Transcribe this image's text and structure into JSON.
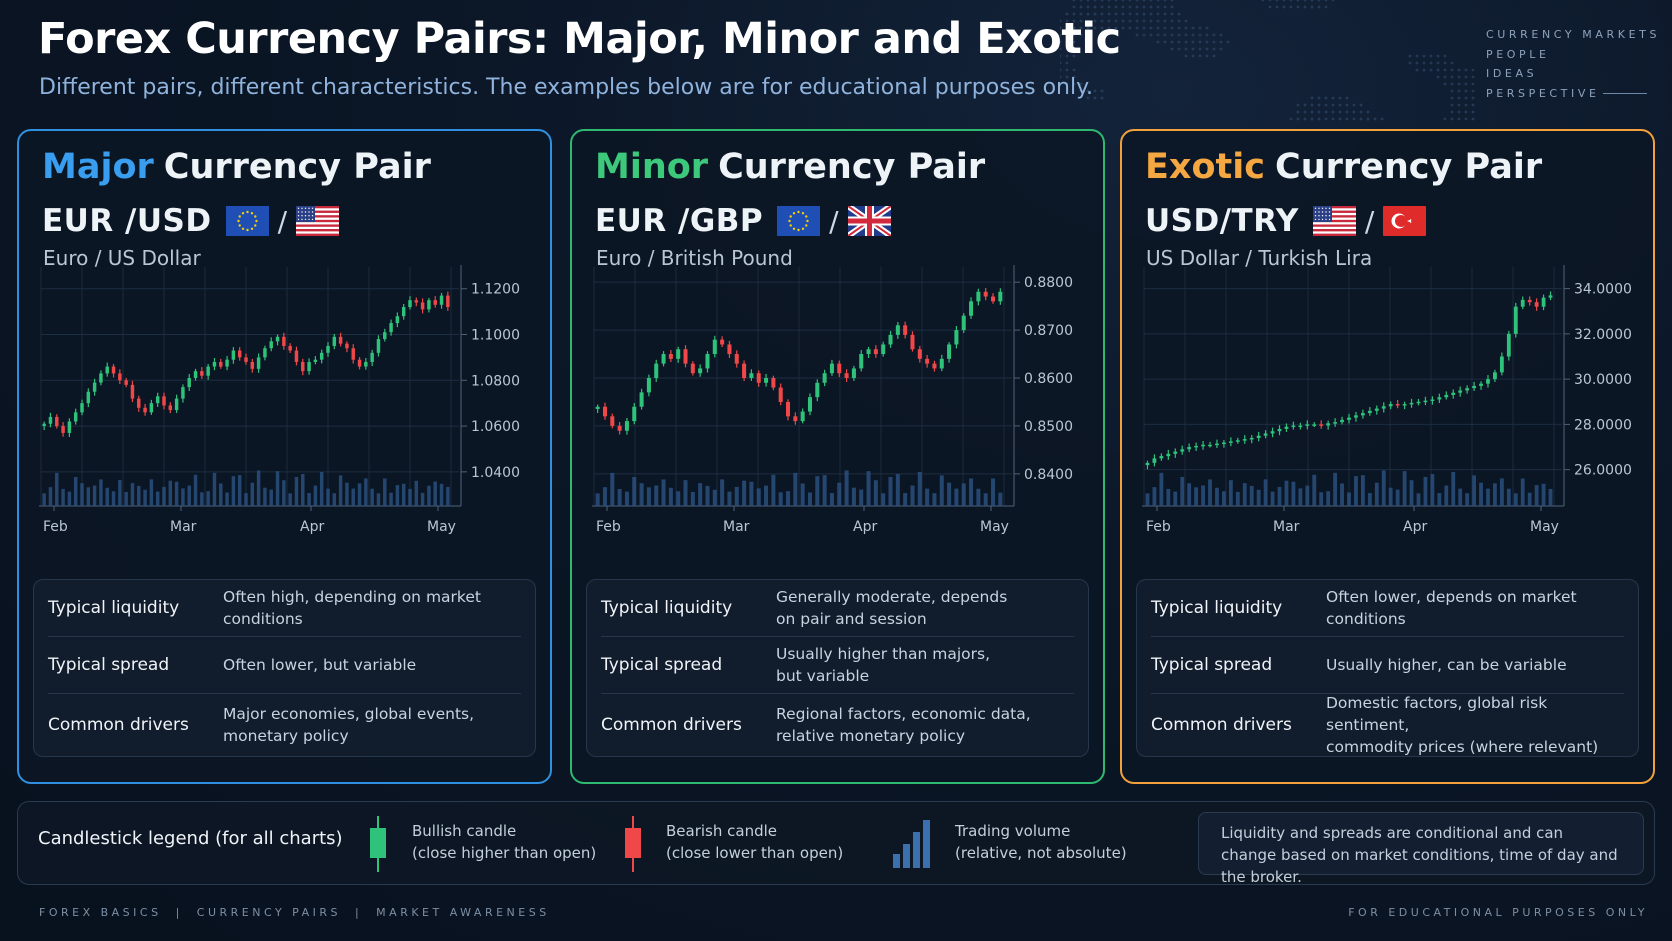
{
  "header": {
    "title": "Forex Currency Pairs: Major, Minor and Exotic",
    "subtitle": "Different pairs, different characteristics. The examples below are for educational purposes only.",
    "brand": [
      "CURRENCY MARKETS",
      "PEOPLE",
      "IDEAS",
      "PERSPECTIVE"
    ]
  },
  "colors": {
    "major": "#2f8fe0",
    "minor": "#2fb870",
    "exotic": "#f2a13c",
    "bullish": "#2fc27a",
    "bearish": "#f04848",
    "volume": "#2a4f7c"
  },
  "panels": [
    {
      "id": "major",
      "keyword": "Major",
      "title_rest": "Currency Pair",
      "pair": "EUR /USD",
      "pair_name": "Euro / US Dollar",
      "flags": [
        "eu-flag",
        "us-flag"
      ],
      "rows": [
        {
          "label": "Typical liquidity",
          "value": "Often high, depending on market conditions"
        },
        {
          "label": "Typical spread",
          "value": "Often lower, but variable"
        },
        {
          "label": "Common drivers",
          "value": "Major economies, global events,\nmonetary policy"
        }
      ]
    },
    {
      "id": "minor",
      "keyword": "Minor",
      "title_rest": "Currency Pair",
      "pair": "EUR /GBP",
      "pair_name": "Euro / British Pound",
      "flags": [
        "eu-flag",
        "uk-flag"
      ],
      "rows": [
        {
          "label": "Typical liquidity",
          "value": "Generally moderate, depends\non pair and session"
        },
        {
          "label": "Typical spread",
          "value": "Usually higher than majors,\nbut variable"
        },
        {
          "label": "Common drivers",
          "value": "Regional factors, economic data,\nrelative monetary policy"
        }
      ]
    },
    {
      "id": "exotic",
      "keyword": "Exotic",
      "title_rest": "Currency Pair",
      "pair": "USD/TRY",
      "pair_name": "US Dollar / Turkish Lira",
      "flags": [
        "us-flag",
        "tr-flag"
      ],
      "rows": [
        {
          "label": "Typical liquidity",
          "value": "Often lower, depends on market\nconditions"
        },
        {
          "label": "Typical spread",
          "value": "Usually higher, can be variable"
        },
        {
          "label": "Common drivers",
          "value": "Domestic factors, global risk sentiment,\ncommodity prices (where relevant)"
        }
      ]
    }
  ],
  "chart_data": [
    {
      "type": "candlestick",
      "x_ticks": [
        "Feb",
        "Mar",
        "Apr",
        "May"
      ],
      "y_ticks": [
        "1.1200",
        "1.1000",
        "1.0800",
        "1.0600",
        "1.0400"
      ],
      "ylim": [
        1.036,
        1.126
      ],
      "grid": true,
      "closes": [
        1.061,
        1.064,
        1.06,
        1.057,
        1.062,
        1.066,
        1.07,
        1.075,
        1.079,
        1.083,
        1.086,
        1.083,
        1.08,
        1.078,
        1.072,
        1.068,
        1.066,
        1.07,
        1.073,
        1.069,
        1.067,
        1.072,
        1.077,
        1.081,
        1.084,
        1.082,
        1.086,
        1.088,
        1.086,
        1.089,
        1.093,
        1.09,
        1.088,
        1.085,
        1.09,
        1.094,
        1.097,
        1.099,
        1.095,
        1.093,
        1.088,
        1.084,
        1.088,
        1.089,
        1.092,
        1.095,
        1.099,
        1.096,
        1.094,
        1.089,
        1.086,
        1.088,
        1.092,
        1.098,
        1.101,
        1.105,
        1.108,
        1.112,
        1.115,
        1.114,
        1.111,
        1.115,
        1.113,
        1.117,
        1.112
      ]
    },
    {
      "type": "candlestick",
      "x_ticks": [
        "Feb",
        "Mar",
        "Apr",
        "May"
      ],
      "y_ticks": [
        "0.8800",
        "0.8700",
        "0.8600",
        "0.8500",
        "0.8400"
      ],
      "ylim": [
        0.8385,
        0.8815
      ],
      "grid": true,
      "closes": [
        0.854,
        0.852,
        0.85,
        0.849,
        0.851,
        0.854,
        0.857,
        0.86,
        0.863,
        0.865,
        0.864,
        0.866,
        0.863,
        0.861,
        0.862,
        0.865,
        0.868,
        0.867,
        0.865,
        0.863,
        0.86,
        0.861,
        0.859,
        0.86,
        0.858,
        0.855,
        0.852,
        0.851,
        0.853,
        0.856,
        0.859,
        0.861,
        0.863,
        0.861,
        0.86,
        0.862,
        0.865,
        0.866,
        0.865,
        0.867,
        0.869,
        0.871,
        0.869,
        0.866,
        0.864,
        0.863,
        0.862,
        0.864,
        0.867,
        0.87,
        0.873,
        0.876,
        0.878,
        0.877,
        0.876,
        0.878
      ]
    },
    {
      "type": "candlestick",
      "x_ticks": [
        "Feb",
        "Mar",
        "Apr",
        "May"
      ],
      "y_ticks": [
        "34.0000",
        "32.0000",
        "30.0000",
        "28.0000",
        "26.0000"
      ],
      "ylim": [
        25.5,
        34.6
      ],
      "grid": true,
      "closes": [
        26.3,
        26.5,
        26.6,
        26.7,
        26.8,
        26.9,
        27.0,
        27.05,
        27.1,
        27.1,
        27.15,
        27.2,
        27.25,
        27.3,
        27.35,
        27.4,
        27.5,
        27.6,
        27.7,
        27.8,
        27.9,
        27.95,
        27.95,
        28.0,
        28.0,
        27.95,
        28.05,
        28.1,
        28.2,
        28.3,
        28.4,
        28.5,
        28.6,
        28.7,
        28.8,
        28.9,
        28.85,
        28.9,
        28.95,
        29.0,
        29.05,
        29.1,
        29.2,
        29.3,
        29.4,
        29.5,
        29.6,
        29.7,
        29.8,
        30.0,
        30.3,
        31.0,
        32.0,
        33.2,
        33.5,
        33.4,
        33.2,
        33.6,
        33.7
      ]
    }
  ],
  "legend": {
    "title": "Candlestick legend (for all charts)",
    "bullish": [
      "Bullish candle",
      "(close higher than open)"
    ],
    "bearish": [
      "Bearish candle",
      "(close lower than open)"
    ],
    "volume": [
      "Trading volume",
      "(relative, not absolute)"
    ],
    "note": "Liquidity and spreads are conditional and can change based on market conditions, time of day and the broker."
  },
  "footer": {
    "left": "FOREX BASICS  |  CURRENCY PAIRS  |  MARKET AWARENESS",
    "right": "FOR EDUCATIONAL PURPOSES ONLY"
  }
}
